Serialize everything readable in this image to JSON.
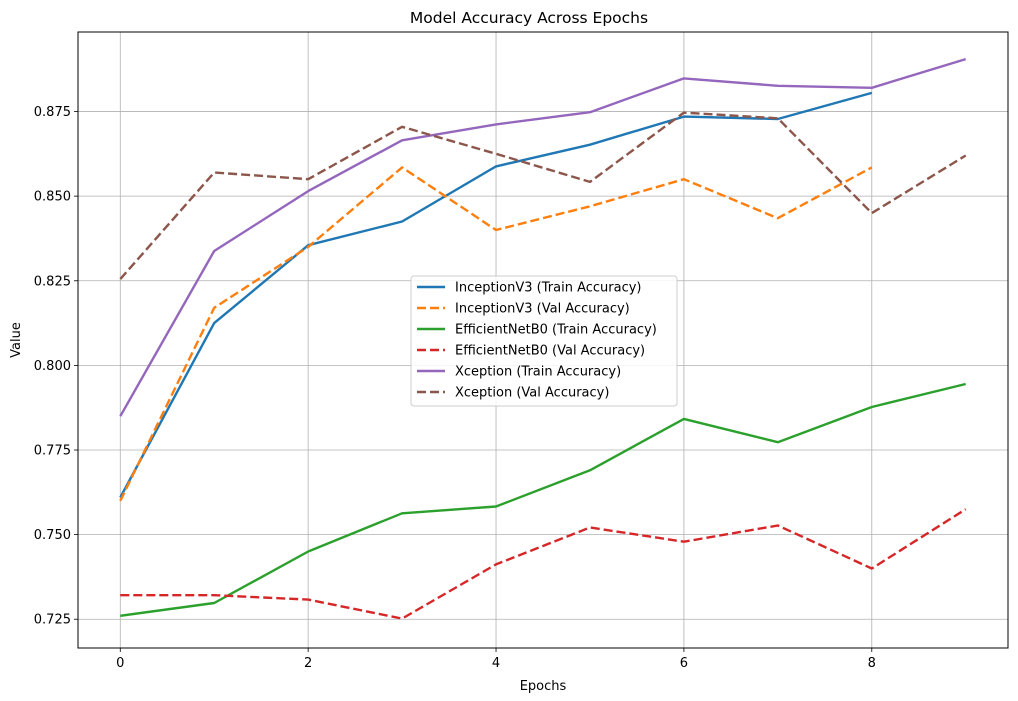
{
  "chart_data": {
    "type": "line",
    "title": "Model Accuracy Across Epochs",
    "xlabel": "Epochs",
    "ylabel": "Value",
    "xlim": [
      -0.45,
      9.45
    ],
    "ylim": [
      0.7165,
      0.8985
    ],
    "xticks": [
      0,
      2,
      4,
      6,
      8
    ],
    "yticks": [
      0.725,
      0.75,
      0.775,
      0.8,
      0.825,
      0.85,
      0.875
    ],
    "ytick_labels": [
      "0.725",
      "0.750",
      "0.775",
      "0.800",
      "0.825",
      "0.850",
      "0.875"
    ],
    "grid": true,
    "legend_position": "center",
    "series": [
      {
        "name": "InceptionV3 (Train Accuracy)",
        "color": "#1f77b4",
        "dashed": false,
        "x": [
          0,
          1,
          2,
          3,
          4,
          5,
          6,
          7,
          8
        ],
        "values": [
          0.761,
          0.8125,
          0.8355,
          0.8425,
          0.8588,
          0.8652,
          0.8735,
          0.8728,
          0.8805
        ]
      },
      {
        "name": "InceptionV3 (Val Accuracy)",
        "color": "#ff7f0e",
        "dashed": true,
        "x": [
          0,
          1,
          2,
          3,
          4,
          5,
          6,
          7,
          8
        ],
        "values": [
          0.76,
          0.817,
          0.835,
          0.8585,
          0.84,
          0.847,
          0.855,
          0.8435,
          0.8585
        ]
      },
      {
        "name": "EfficientNetB0 (Train Accuracy)",
        "color": "#2ca02c",
        "dashed": false,
        "x": [
          0,
          1,
          2,
          3,
          4,
          5,
          6,
          7,
          8,
          9
        ],
        "values": [
          0.726,
          0.7298,
          0.745,
          0.7563,
          0.7583,
          0.769,
          0.7842,
          0.7773,
          0.7877,
          0.7945
        ]
      },
      {
        "name": "EfficientNetB0 (Val Accuracy)",
        "color": "#d62728",
        "dashed": true,
        "x": [
          0,
          1,
          2,
          3,
          4,
          5,
          6,
          7,
          8,
          9
        ],
        "values": [
          0.7321,
          0.7321,
          0.7308,
          0.7252,
          0.7412,
          0.7521,
          0.7479,
          0.7527,
          0.74,
          0.7575
        ]
      },
      {
        "name": "Xception (Train Accuracy)",
        "color": "#9467bd",
        "dashed": false,
        "x": [
          0,
          1,
          2,
          3,
          4,
          5,
          6,
          7,
          8,
          9
        ],
        "values": [
          0.785,
          0.8338,
          0.8515,
          0.8665,
          0.8712,
          0.8748,
          0.8848,
          0.8826,
          0.882,
          0.8905
        ]
      },
      {
        "name": "Xception (Val Accuracy)",
        "color": "#8c564b",
        "dashed": true,
        "x": [
          0,
          1,
          2,
          3,
          4,
          5,
          6,
          7,
          8,
          9
        ],
        "values": [
          0.8255,
          0.857,
          0.855,
          0.8705,
          0.8625,
          0.8542,
          0.8747,
          0.873,
          0.845,
          0.862
        ]
      }
    ]
  }
}
